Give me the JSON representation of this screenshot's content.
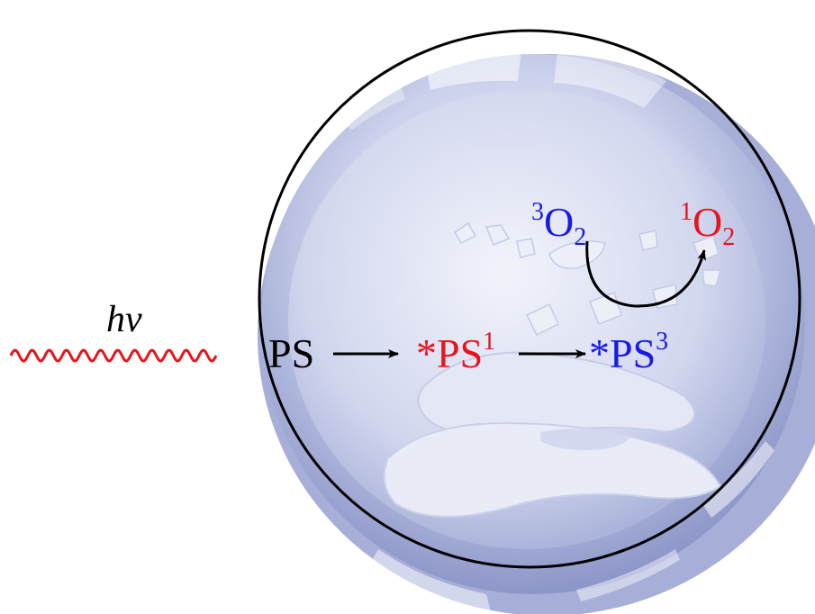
{
  "light": {
    "symbol_h": "h",
    "symbol_v": "v",
    "wave_color": "#e8141c"
  },
  "reaction": {
    "ps_ground": "PS",
    "ps_singlet_star": "*",
    "ps_singlet_base": "PS",
    "ps_singlet_sup": "1",
    "ps_triplet_star": "*",
    "ps_triplet_base": "PS",
    "ps_triplet_sup": "3",
    "oxygen_triplet_sup": "3",
    "oxygen_triplet_base": "O",
    "oxygen_triplet_sub": "2",
    "oxygen_singlet_sup": "1",
    "oxygen_singlet_base": "O",
    "oxygen_singlet_sub": "2"
  },
  "colors": {
    "black": "#000000",
    "red": "#e8141c",
    "blue": "#1a1ae6",
    "cell_light": "#eef0fa",
    "cell_mid": "#b4bce0",
    "cell_dark": "#8c96c8"
  }
}
